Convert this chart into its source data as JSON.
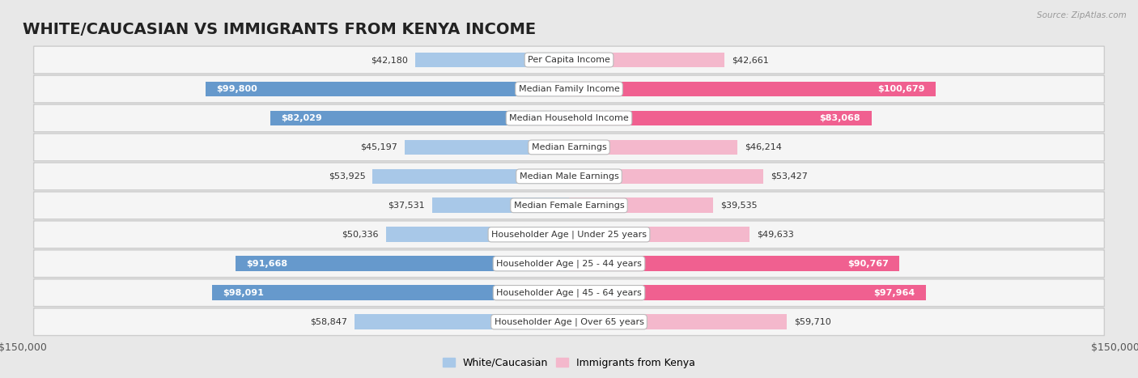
{
  "title": "WHITE/CAUCASIAN VS IMMIGRANTS FROM KENYA INCOME",
  "source": "Source: ZipAtlas.com",
  "categories": [
    "Per Capita Income",
    "Median Family Income",
    "Median Household Income",
    "Median Earnings",
    "Median Male Earnings",
    "Median Female Earnings",
    "Householder Age | Under 25 years",
    "Householder Age | 25 - 44 years",
    "Householder Age | 45 - 64 years",
    "Householder Age | Over 65 years"
  ],
  "white_values": [
    42180,
    99800,
    82029,
    45197,
    53925,
    37531,
    50336,
    91668,
    98091,
    58847
  ],
  "kenya_values": [
    42661,
    100679,
    83068,
    46214,
    53427,
    39535,
    49633,
    90767,
    97964,
    59710
  ],
  "white_color_light": "#a8c8e8",
  "white_color_dark": "#6699cc",
  "kenya_color_light": "#f4b8cc",
  "kenya_color_dark": "#f06090",
  "white_label": "White/Caucasian",
  "kenya_label": "Immigrants from Kenya",
  "x_max": 150000,
  "bg_color": "#e8e8e8",
  "row_bg": "#f5f5f5",
  "bar_height": 0.52,
  "title_fontsize": 14,
  "label_fontsize": 8,
  "value_fontsize": 8,
  "axis_label_fontsize": 9,
  "white_threshold": 60000,
  "kenya_threshold": 60000
}
